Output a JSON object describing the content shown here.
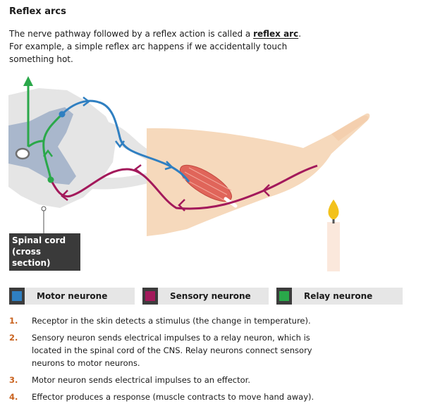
{
  "title": "Reflex arcs",
  "intro": {
    "before": "The nerve pathway followed by a reflex action is called a ",
    "term": "reflex arc",
    "after": ". For example, a simple reflex arc happens if we accidentally touch something hot."
  },
  "diagram_label": "Spinal cord (cross section)",
  "colors": {
    "motor": "#2f7fc1",
    "sensory": "#a3195b",
    "relay": "#2aa84a",
    "step_number": "#c9621e",
    "skin": "#f6d9bc",
    "grey_matter": "#a9b7cc",
    "white_matter": "#e5e5e5"
  },
  "legend": [
    {
      "label": "Motor neurone",
      "color": "#2f7fc1"
    },
    {
      "label": "Sensory neurone",
      "color": "#a3195b"
    },
    {
      "label": "Relay neurone",
      "color": "#2aa84a"
    }
  ],
  "steps": [
    {
      "number": "1.",
      "text": "Receptor in the skin detects a stimulus (the change in temperature)."
    },
    {
      "number": "2.",
      "text": "Sensory neuron sends electrical impulses to a relay neuron, which is located in the spinal cord of the CNS. Relay neurons connect sensory neurons to motor neurons."
    },
    {
      "number": "3.",
      "text": "Motor neuron sends electrical impulses to an effector."
    },
    {
      "number": "4.",
      "text": "Effector produces a response (muscle contracts to move hand away)."
    }
  ]
}
